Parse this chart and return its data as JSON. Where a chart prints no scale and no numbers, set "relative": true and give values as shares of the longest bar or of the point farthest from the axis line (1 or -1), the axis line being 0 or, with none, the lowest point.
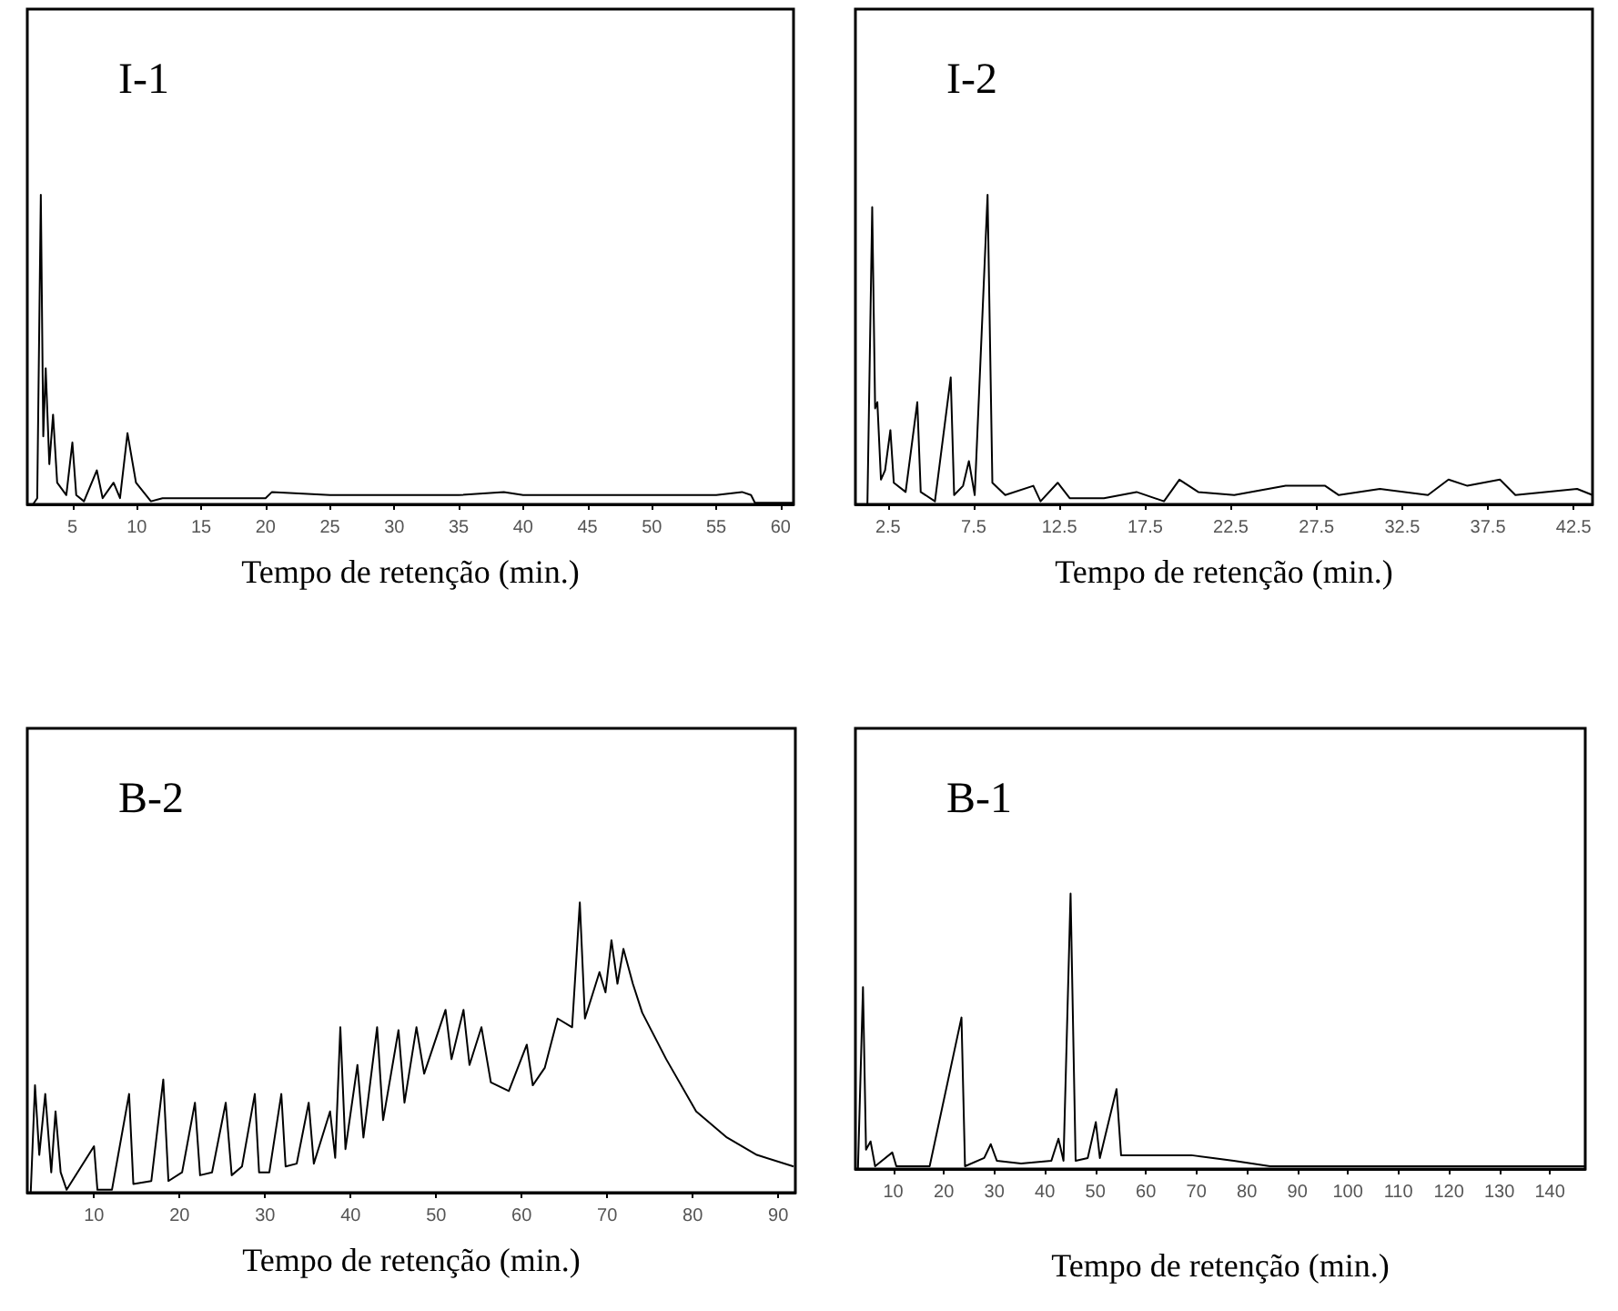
{
  "chart_data": [
    {
      "type": "line",
      "title": "I-1",
      "xlabel": "Tempo de retenção (min.)",
      "relative": true,
      "tick_labels": "x",
      "marker": "none",
      "line_style": "solid",
      "xlim": [
        1.5,
        61
      ],
      "xticks": [
        5,
        10,
        15,
        20,
        25,
        30,
        35,
        40,
        45,
        50,
        55,
        60
      ],
      "series": [
        {
          "color": "#000000",
          "x": [
            1.94,
            2.27,
            2.55,
            2.74,
            2.93,
            3.21,
            3.5,
            3.82,
            4.53,
            5,
            5.3,
            5.9,
            6.9,
            7.35,
            8.2,
            8.7,
            9.28,
            9.94,
            11.1,
            12,
            15,
            20,
            20.5,
            25,
            30,
            35,
            38.5,
            40,
            45,
            50,
            55,
            57,
            57.7,
            58,
            61
          ],
          "values": [
            0,
            0.02,
            1,
            0.22,
            0.44,
            0.13,
            0.29,
            0.07,
            0.03,
            0.2,
            0.03,
            0.01,
            0.11,
            0.02,
            0.07,
            0.02,
            0.23,
            0.07,
            0.01,
            0.02,
            0.02,
            0.02,
            0.04,
            0.03,
            0.03,
            0.03,
            0.04,
            0.03,
            0.03,
            0.03,
            0.03,
            0.04,
            0.03,
            0.005,
            0.005
          ]
        }
      ]
    },
    {
      "type": "line",
      "title": "I-2",
      "xlabel": "Tempo de retenção (min.)",
      "relative": true,
      "tick_labels": "x",
      "marker": "none",
      "line_style": "solid",
      "xlim": [
        0.6,
        43.6
      ],
      "xticks": [
        2.5,
        7.5,
        12.5,
        17.5,
        22.5,
        27.5,
        32.5,
        37.5,
        42.5
      ],
      "series": [
        {
          "color": "#000000",
          "x": [
            1.3,
            1.58,
            1.75,
            1.88,
            2.09,
            2.33,
            2.64,
            2.84,
            3.53,
            4.21,
            4.41,
            5.24,
            6.16,
            6.36,
            6.88,
            7.22,
            7.56,
            8.31,
            8.59,
            9.34,
            10.98,
            11.4,
            12.4,
            13.1,
            15.1,
            17,
            18.6,
            19.5,
            20.6,
            22.7,
            25.7,
            28,
            28.8,
            31.2,
            34,
            35.2,
            36.3,
            38.2,
            39.1,
            42.7,
            43.6
          ],
          "values": [
            0,
            0.96,
            0.31,
            0.33,
            0.08,
            0.11,
            0.24,
            0.07,
            0.04,
            0.33,
            0.04,
            0.01,
            0.41,
            0.03,
            0.06,
            0.14,
            0.03,
            1,
            0.07,
            0.03,
            0.06,
            0.01,
            0.07,
            0.02,
            0.02,
            0.04,
            0.01,
            0.08,
            0.04,
            0.03,
            0.06,
            0.06,
            0.03,
            0.05,
            0.03,
            0.08,
            0.06,
            0.08,
            0.03,
            0.05,
            0.03
          ]
        }
      ]
    },
    {
      "type": "line",
      "title": "B-2",
      "xlabel": "Tempo de retenção (min.)",
      "relative": true,
      "tick_labels": "x",
      "marker": "none",
      "line_style": "solid",
      "xlim": [
        2.2,
        92
      ],
      "xticks": [
        10,
        20,
        30,
        40,
        50,
        60,
        70,
        80,
        90
      ],
      "series": [
        {
          "color": "#000000",
          "x": [
            2.6,
            3.1,
            3.6,
            4.3,
            5,
            5.5,
            6.1,
            6.8,
            10,
            10.4,
            12.1,
            14.1,
            14.6,
            16.7,
            18.1,
            18.7,
            20.3,
            21.8,
            22.4,
            23.8,
            25.4,
            26.1,
            27.3,
            28.8,
            29.3,
            30.5,
            31.9,
            32.4,
            33.7,
            35.1,
            35.7,
            37.6,
            38.2,
            38.8,
            39.4,
            40.8,
            41.5,
            43.1,
            43.8,
            45.6,
            46.3,
            47.7,
            48.6,
            51.1,
            51.8,
            53.2,
            53.9,
            55.3,
            56.4,
            58.5,
            60.6,
            61.3,
            62.7,
            64.2,
            65.9,
            66.8,
            67.4,
            69.1,
            69.8,
            70.5,
            71.2,
            71.9,
            73,
            74.1,
            76.9,
            80.4,
            84,
            87.5,
            91.8
          ],
          "values": [
            0,
            0.37,
            0.13,
            0.34,
            0.07,
            0.28,
            0.07,
            0.01,
            0.16,
            0.01,
            0.01,
            0.34,
            0.03,
            0.04,
            0.39,
            0.04,
            0.07,
            0.31,
            0.06,
            0.07,
            0.31,
            0.06,
            0.09,
            0.34,
            0.07,
            0.07,
            0.34,
            0.09,
            0.1,
            0.31,
            0.1,
            0.28,
            0.12,
            0.57,
            0.15,
            0.44,
            0.19,
            0.57,
            0.25,
            0.56,
            0.31,
            0.57,
            0.41,
            0.63,
            0.46,
            0.63,
            0.44,
            0.57,
            0.38,
            0.35,
            0.51,
            0.37,
            0.43,
            0.6,
            0.57,
            1,
            0.6,
            0.76,
            0.69,
            0.87,
            0.72,
            0.84,
            0.72,
            0.62,
            0.46,
            0.28,
            0.19,
            0.13,
            0.09
          ]
        }
      ]
    },
    {
      "type": "line",
      "title": "B-1",
      "xlabel": "Tempo de retenção (min.)",
      "relative": true,
      "tick_labels": "x",
      "marker": "none",
      "line_style": "solid",
      "xlim": [
        2.5,
        147
      ],
      "xticks": [
        10,
        20,
        30,
        40,
        50,
        60,
        70,
        80,
        90,
        100,
        110,
        120,
        130,
        140
      ],
      "series": [
        {
          "color": "#000000",
          "x": [
            3,
            4,
            4.6,
            5.5,
            6.4,
            9.8,
            10.6,
            17.2,
            23.5,
            24.2,
            28,
            29.3,
            30.5,
            35.3,
            41.3,
            42.7,
            43.7,
            45.1,
            46.1,
            48.5,
            50.1,
            50.9,
            54.2,
            55.1,
            60.5,
            69,
            77.4,
            84.6,
            101.5,
            147
          ],
          "values": [
            0,
            0.66,
            0.07,
            0.1,
            0.01,
            0.06,
            0.01,
            0.01,
            0.55,
            0.01,
            0.04,
            0.09,
            0.03,
            0.02,
            0.03,
            0.11,
            0.03,
            1,
            0.03,
            0.04,
            0.17,
            0.04,
            0.29,
            0.05,
            0.05,
            0.05,
            0.03,
            0.01,
            0.01,
            0.01
          ]
        }
      ]
    }
  ]
}
